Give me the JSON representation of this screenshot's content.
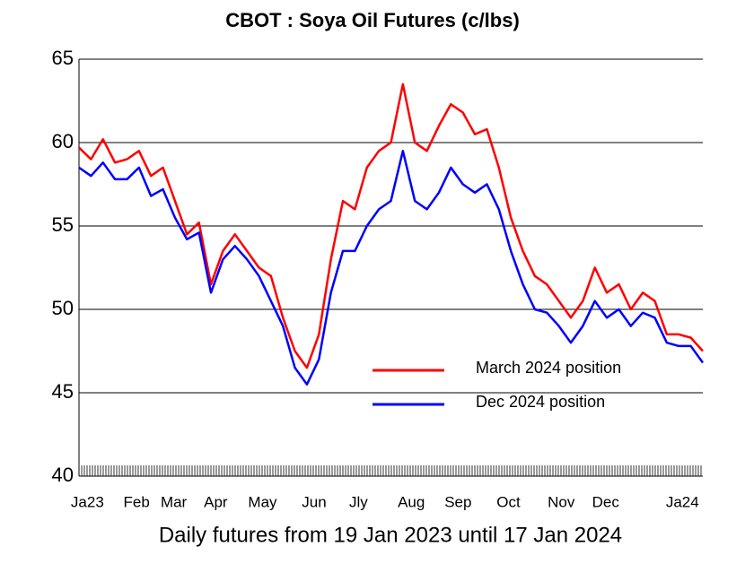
{
  "chart_data": {
    "type": "line",
    "title": "CBOT : Soya Oil Futures (c/lbs)",
    "x_label": "Daily futures from 19 Jan 2023 until 17 Jan 2024",
    "xlim": [
      0,
      52
    ],
    "xticks": [
      {
        "value": 0.7,
        "label": "Ja23"
      },
      {
        "value": 4.8,
        "label": "Feb"
      },
      {
        "value": 7.9,
        "label": "Mar"
      },
      {
        "value": 11.4,
        "label": "Apr"
      },
      {
        "value": 15.3,
        "label": "May"
      },
      {
        "value": 19.6,
        "label": "Jun"
      },
      {
        "value": 23.3,
        "label": "Jly"
      },
      {
        "value": 27.7,
        "label": "Aug"
      },
      {
        "value": 31.6,
        "label": "Sep"
      },
      {
        "value": 35.8,
        "label": "Oct"
      },
      {
        "value": 40.2,
        "label": "Nov"
      },
      {
        "value": 43.9,
        "label": "Dec"
      },
      {
        "value": 50.3,
        "label": "Ja24"
      }
    ],
    "ylim": [
      40,
      65
    ],
    "yticks": [
      40,
      45,
      50,
      55,
      60,
      65
    ],
    "grid": true,
    "legend": "lower right",
    "series": [
      {
        "name": "March 2024 position",
        "color": "#ff0000",
        "values": [
          59.7,
          59.0,
          60.2,
          58.8,
          59.0,
          59.5,
          58.0,
          58.5,
          56.5,
          54.5,
          55.2,
          51.5,
          53.5,
          54.5,
          53.5,
          52.5,
          52.0,
          49.5,
          47.5,
          46.5,
          48.5,
          53.0,
          56.5,
          56.0,
          58.5,
          59.5,
          60.0,
          63.5,
          60.0,
          59.5,
          61.0,
          62.3,
          61.8,
          60.5,
          60.8,
          58.5,
          55.5,
          53.5,
          52.0,
          51.5,
          50.5,
          49.5,
          50.5,
          52.5,
          51.0,
          51.5,
          50.0,
          51.0,
          50.5,
          48.5,
          48.5,
          48.3,
          47.5
        ]
      },
      {
        "name": "Dec 2024 position",
        "color": "#0000ff",
        "values": [
          58.5,
          58.0,
          58.8,
          57.8,
          57.8,
          58.5,
          56.8,
          57.2,
          55.5,
          54.2,
          54.6,
          51.0,
          53.0,
          53.8,
          53.0,
          52.0,
          50.5,
          49.0,
          46.5,
          45.5,
          47.0,
          51.0,
          53.5,
          53.5,
          55.0,
          56.0,
          56.5,
          59.5,
          56.5,
          56.0,
          57.0,
          58.5,
          57.5,
          57.0,
          57.5,
          56.0,
          53.5,
          51.5,
          50.0,
          49.8,
          49.0,
          48.0,
          49.0,
          50.5,
          49.5,
          50.0,
          49.0,
          49.8,
          49.5,
          48.0,
          47.8,
          47.8,
          46.8
        ]
      }
    ]
  }
}
